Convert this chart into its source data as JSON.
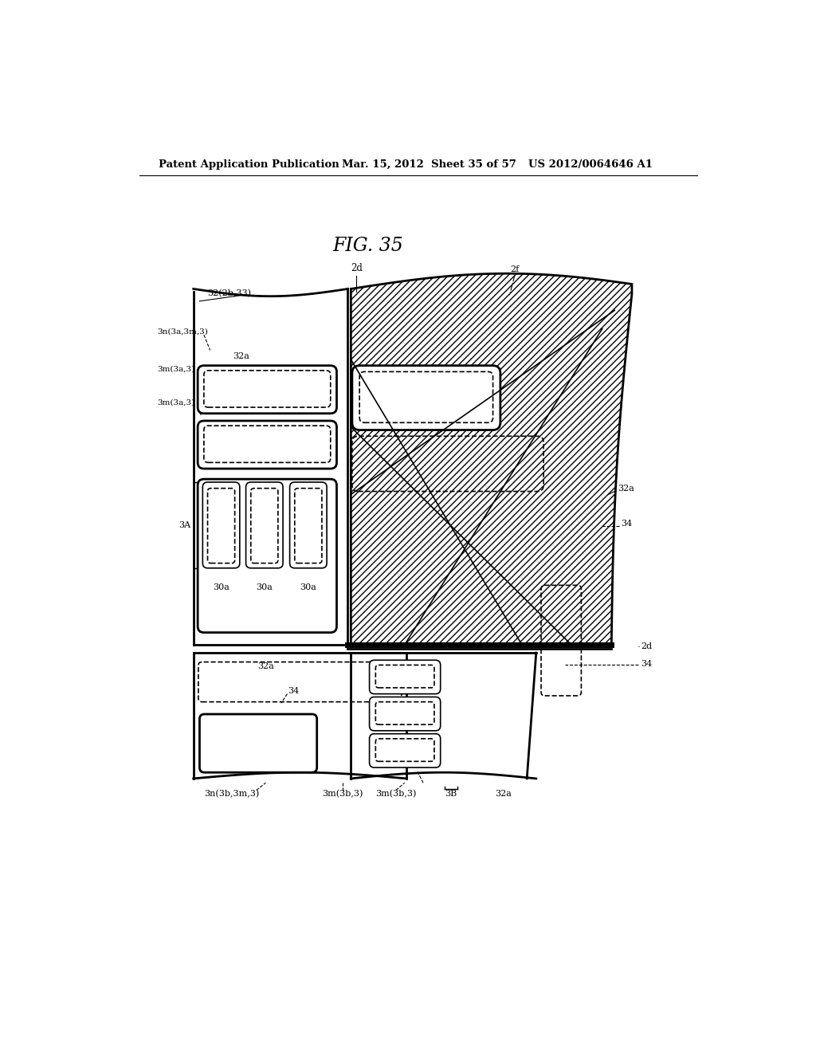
{
  "title": "FIG. 35",
  "header_left": "Patent Application Publication",
  "header_center": "Mar. 15, 2012  Sheet 35 of 57",
  "header_right": "US 2012/0064646 A1",
  "bg_color": "#ffffff"
}
